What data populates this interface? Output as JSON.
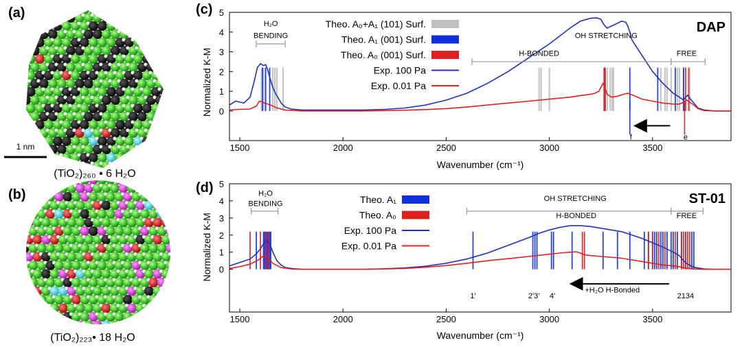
{
  "panels": {
    "a": {
      "label": "(a)",
      "formula": "(TiO₂)₂₆₀ • 6 H₂O",
      "scale_bar": "1 nm"
    },
    "b": {
      "label": "(b)",
      "formula": "(TiO₂)₂₂₃• 18 H₂O"
    }
  },
  "colors": {
    "exp100": "#1f2fbf",
    "exp001": "#e02020",
    "theo_A1": "#1030e0",
    "theo_A0": "#e02020",
    "theo_A0A1": "#c0c0c0",
    "annot": "#999999"
  },
  "chart_data": [
    {
      "id": "c",
      "panel_label": "(c)",
      "type": "line",
      "title": "DAP",
      "xlabel": "Wavenumber (cm⁻¹)",
      "ylabel": "Normalized K-M",
      "xlim": [
        1450,
        3880
      ],
      "ylim": [
        -1.5,
        5
      ],
      "xticks": [
        1500,
        2000,
        2500,
        3000,
        3500
      ],
      "yticks": [
        0,
        1,
        2,
        3,
        4,
        5
      ],
      "legend": [
        {
          "name": "Theo. A₀+A₁ (101) Surf.",
          "kind": "bar",
          "color_key": "theo_A0A1"
        },
        {
          "name": "Theo. A₁ (001) Surf.",
          "kind": "bar",
          "color_key": "theo_A1"
        },
        {
          "name": "Theo. A₀ (001) Surf.",
          "kind": "bar",
          "color_key": "theo_A0"
        },
        {
          "name": "Exp. 100 Pa",
          "kind": "line",
          "color_key": "exp100"
        },
        {
          "name": "Exp. 0.01 Pa",
          "kind": "line",
          "color_key": "exp001"
        }
      ],
      "series": [
        {
          "name": "Exp. 100 Pa",
          "color_key": "exp100",
          "x": [
            1450,
            1480,
            1520,
            1550,
            1570,
            1585,
            1600,
            1615,
            1625,
            1635,
            1645,
            1660,
            1675,
            1690,
            1700,
            1720,
            1750,
            1800,
            1900,
            2000,
            2100,
            2200,
            2300,
            2400,
            2500,
            2600,
            2700,
            2800,
            2900,
            3000,
            3050,
            3100,
            3150,
            3200,
            3230,
            3250,
            3260,
            3270,
            3280,
            3300,
            3330,
            3350,
            3370,
            3380,
            3390,
            3400,
            3450,
            3500,
            3550,
            3600,
            3630,
            3650,
            3660,
            3670,
            3680,
            3700,
            3720,
            3750,
            3800,
            3880
          ],
          "y": [
            0.3,
            0.5,
            0.4,
            0.7,
            1.5,
            2.2,
            2.4,
            2.3,
            2.35,
            2.1,
            1.7,
            1.2,
            0.85,
            0.6,
            0.4,
            0.2,
            0.1,
            0.05,
            0.05,
            0.05,
            0.05,
            0.08,
            0.15,
            0.3,
            0.55,
            0.9,
            1.4,
            2.0,
            2.7,
            3.4,
            3.8,
            4.2,
            4.55,
            4.7,
            4.72,
            4.65,
            4.45,
            4.3,
            4.2,
            4.3,
            4.45,
            4.55,
            4.5,
            4.3,
            4.0,
            3.6,
            2.8,
            2.0,
            1.4,
            0.9,
            0.7,
            0.55,
            0.7,
            0.8,
            0.65,
            0.4,
            0.15,
            0.05,
            0.0,
            0.0
          ]
        },
        {
          "name": "Exp. 0.01 Pa",
          "color_key": "exp001",
          "x": [
            1450,
            1500,
            1550,
            1580,
            1595,
            1610,
            1620,
            1635,
            1650,
            1680,
            1720,
            1800,
            1900,
            2000,
            2100,
            2200,
            2300,
            2400,
            2500,
            2600,
            2700,
            2800,
            2900,
            3000,
            3100,
            3150,
            3200,
            3220,
            3240,
            3250,
            3260,
            3270,
            3280,
            3300,
            3330,
            3360,
            3380,
            3400,
            3450,
            3500,
            3550,
            3600,
            3630,
            3650,
            3665,
            3680,
            3700,
            3720,
            3750,
            3800,
            3880
          ],
          "y": [
            0.05,
            0.08,
            0.1,
            0.25,
            0.5,
            0.45,
            0.4,
            0.35,
            0.3,
            0.15,
            0.05,
            0.0,
            0.0,
            0.0,
            0.0,
            0.02,
            0.04,
            0.07,
            0.12,
            0.2,
            0.3,
            0.4,
            0.5,
            0.6,
            0.7,
            0.78,
            0.85,
            0.9,
            1.0,
            1.2,
            1.4,
            1.15,
            0.85,
            0.7,
            0.75,
            0.85,
            0.9,
            0.82,
            0.6,
            0.5,
            0.4,
            0.35,
            0.35,
            0.45,
            0.55,
            0.45,
            0.3,
            0.12,
            0.02,
            0.0,
            0.0
          ]
        }
      ],
      "theo_lines": [
        {
          "color_key": "theo_A0A1",
          "x": [
            1605,
            1615,
            1625,
            1660,
            1670,
            1680,
            1710,
            2950,
            2960,
            3000,
            3270,
            3280,
            3295,
            3305,
            3310,
            3540,
            3560,
            3570,
            3590,
            3620,
            3630,
            3650,
            3680
          ],
          "top": 2.2
        },
        {
          "color_key": "theo_A1",
          "x": [
            1610,
            1625,
            1645,
            3270,
            3390,
            3525,
            3610,
            3650
          ],
          "top": 2.2
        },
        {
          "color_key": "theo_A0",
          "x": [
            3265,
            3270,
            3660,
            3675
          ],
          "top": 2.2
        }
      ],
      "annotations": [
        {
          "text": "H₂O",
          "x": 1650,
          "y": 4.3
        },
        {
          "text": "BENDING",
          "x": 1650,
          "y": 3.7
        },
        {
          "text": "OH  STRETCHING",
          "x": 3275,
          "y": 3.7
        },
        {
          "text": "H-BONDED",
          "x": 2950,
          "y": 2.8
        },
        {
          "text": "FREE",
          "x": 3665,
          "y": 2.8
        },
        {
          "text": "f",
          "x": 3395,
          "y": -1.45
        },
        {
          "text": "e",
          "x": 3660,
          "y": -1.45
        }
      ],
      "brackets": [
        {
          "x1": 1580,
          "x2": 1720,
          "y": 3.4
        },
        {
          "x1": 2625,
          "x2": 3590,
          "y": 2.5
        },
        {
          "x1": 3590,
          "x2": 3755,
          "y": 2.5
        }
      ],
      "markers": [
        {
          "x": 3390,
          "from": 0.5,
          "to": -1.2,
          "color_key": "theo_A1"
        },
        {
          "x": 3655,
          "from": 0.5,
          "to": -1.2,
          "color_key": "theo_A0"
        }
      ],
      "arrows": [
        {
          "x1": 3585,
          "x2": 3420,
          "y": -0.75
        }
      ]
    },
    {
      "id": "d",
      "panel_label": "(d)",
      "type": "line",
      "title": "ST-01",
      "xlabel": "Wavenumber (cm⁻¹)",
      "ylabel": "Normalized K-M",
      "xlim": [
        1450,
        3880
      ],
      "ylim": [
        -2.5,
        5
      ],
      "xticks": [
        1500,
        2000,
        2500,
        3000,
        3500
      ],
      "yticks": [
        0,
        1,
        2,
        3,
        4,
        5
      ],
      "legend": [
        {
          "name": "Theo. A₁",
          "kind": "bar",
          "color_key": "theo_A1"
        },
        {
          "name": "Theo. A₀",
          "kind": "bar",
          "color_key": "theo_A0"
        },
        {
          "name": "Exp. 100 Pa",
          "kind": "line",
          "color_key": "exp100"
        },
        {
          "name": "Exp. 0.01 Pa",
          "kind": "line",
          "color_key": "exp001"
        }
      ],
      "series": [
        {
          "name": "Exp. 100 Pa",
          "color_key": "exp100",
          "x": [
            1450,
            1500,
            1550,
            1580,
            1600,
            1620,
            1630,
            1645,
            1660,
            1680,
            1700,
            1720,
            1750,
            1800,
            1900,
            2000,
            2100,
            2200,
            2300,
            2400,
            2500,
            2600,
            2700,
            2800,
            2900,
            2950,
            3000,
            3050,
            3100,
            3150,
            3200,
            3250,
            3300,
            3350,
            3400,
            3450,
            3500,
            3550,
            3600,
            3630,
            3650,
            3670,
            3700,
            3750,
            3800,
            3880
          ],
          "y": [
            0.2,
            0.4,
            0.6,
            0.9,
            1.2,
            1.6,
            1.7,
            1.5,
            1.0,
            0.5,
            0.25,
            0.1,
            0.05,
            0.0,
            0.0,
            0.0,
            0.0,
            0.03,
            0.08,
            0.18,
            0.35,
            0.6,
            0.95,
            1.4,
            1.85,
            2.1,
            2.3,
            2.45,
            2.55,
            2.55,
            2.5,
            2.4,
            2.3,
            2.2,
            2.0,
            1.8,
            1.55,
            1.3,
            1.0,
            0.8,
            0.5,
            0.3,
            0.12,
            0.02,
            0.0,
            0.0
          ]
        },
        {
          "name": "Exp. 0.01 Pa",
          "color_key": "exp001",
          "x": [
            1450,
            1500,
            1550,
            1590,
            1610,
            1625,
            1640,
            1660,
            1700,
            1750,
            1800,
            1900,
            2000,
            2100,
            2200,
            2300,
            2400,
            2500,
            2600,
            2700,
            2800,
            2900,
            3000,
            3050,
            3100,
            3130,
            3150,
            3170,
            3200,
            3250,
            3300,
            3350,
            3400,
            3450,
            3500,
            3550,
            3600,
            3630,
            3650,
            3670,
            3700,
            3750,
            3800,
            3880
          ],
          "y": [
            0.05,
            0.15,
            0.3,
            0.55,
            0.75,
            0.8,
            0.6,
            0.35,
            0.1,
            0.02,
            0.0,
            0.0,
            0.0,
            0.0,
            0.02,
            0.05,
            0.12,
            0.22,
            0.35,
            0.5,
            0.62,
            0.75,
            0.88,
            0.95,
            1.0,
            1.02,
            0.95,
            0.85,
            0.8,
            0.75,
            0.7,
            0.65,
            0.55,
            0.45,
            0.35,
            0.25,
            0.2,
            0.15,
            0.1,
            0.05,
            0.02,
            0.0,
            0.0,
            0.0
          ]
        }
      ],
      "theo_lines": [
        {
          "color_key": "theo_A1",
          "x": [
            1580,
            1615,
            1620,
            1625,
            1630,
            1635,
            1640,
            1645,
            1650,
            2630,
            2920,
            2930,
            2940,
            3010,
            3020,
            3110,
            3260,
            3330,
            3390,
            3460,
            3480,
            3500,
            3510,
            3520,
            3540,
            3550,
            3570,
            3590,
            3600,
            3620,
            3640,
            3660,
            3690,
            3700
          ],
          "top": 2.2
        },
        {
          "color_key": "theo_A0",
          "x": [
            1550,
            1600,
            1625,
            1640,
            3160,
            3170,
            3480,
            3500,
            3530,
            3560,
            3610,
            3640,
            3650,
            3660,
            3670,
            3680
          ],
          "top": 2.2
        }
      ],
      "annotations": [
        {
          "text": "H₂O",
          "x": 1625,
          "y": 4.3
        },
        {
          "text": "BENDING",
          "x": 1625,
          "y": 3.7
        },
        {
          "text": "OH  STRETCHING",
          "x": 3125,
          "y": 4.0
        },
        {
          "text": "H-BONDED",
          "x": 3130,
          "y": 3.0
        },
        {
          "text": "FREE",
          "x": 3665,
          "y": 3.0
        },
        {
          "text": "1'",
          "x": 2630,
          "y": -1.7
        },
        {
          "text": "2'3'",
          "x": 2925,
          "y": -1.7
        },
        {
          "text": "4'",
          "x": 3015,
          "y": -1.7
        },
        {
          "text": "2134",
          "x": 3660,
          "y": -1.7
        },
        {
          "text": "+H₂O H-Bonded",
          "x": 3305,
          "y": -1.35
        }
      ],
      "brackets": [
        {
          "x1": 1555,
          "x2": 1685,
          "y": 3.4
        },
        {
          "x1": 2600,
          "x2": 3590,
          "y": 3.4
        },
        {
          "x1": 3590,
          "x2": 3745,
          "y": 3.4
        }
      ],
      "markers": [],
      "arrows": [
        {
          "x1": 3580,
          "x2": 3110,
          "y": -0.85
        }
      ]
    }
  ]
}
